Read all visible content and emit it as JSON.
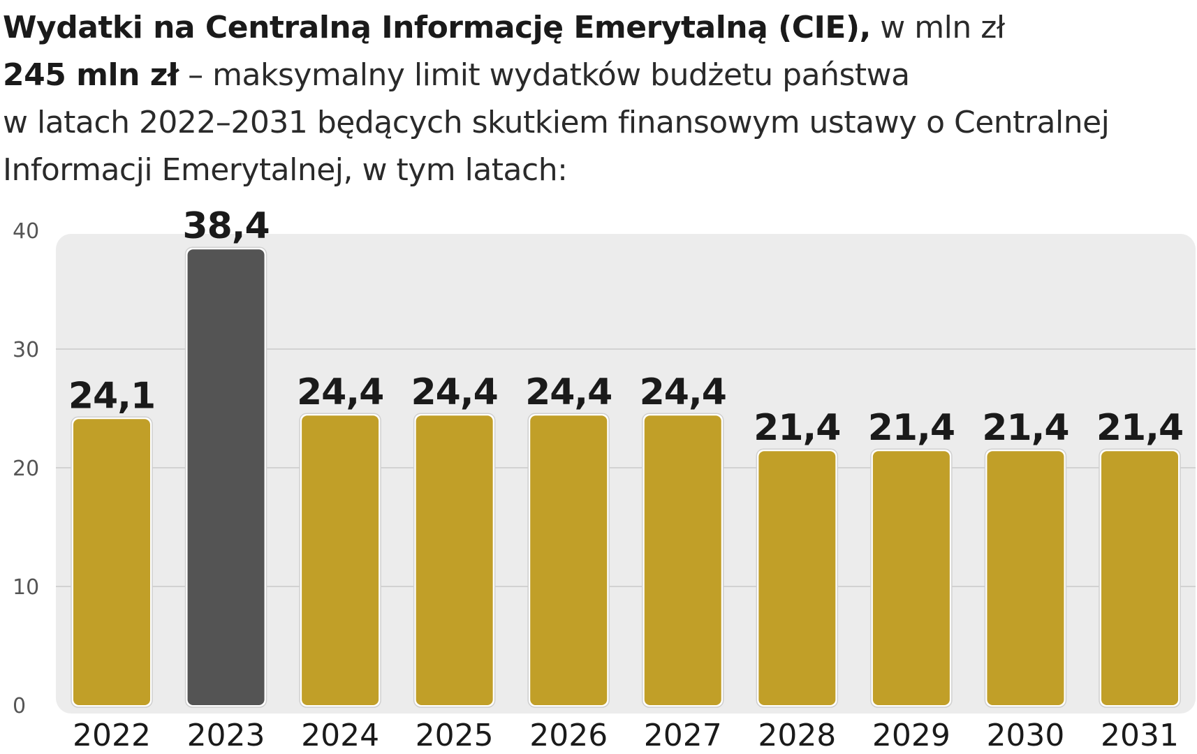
{
  "header": {
    "title_bold": "Wydatki na Centralną Informację Emerytalną (CIE),",
    "title_unit": " w mln zł",
    "limit_amount": "245 mln zł",
    "limit_text": " – maksymalny limit wydatków budżetu państwa",
    "line3": "w latach 2022–2031 będących skutkiem finansowym ustawy o Centralnej",
    "line4": "Informacji Emerytalnej, w tym latach:"
  },
  "chart_data": {
    "type": "bar",
    "categories": [
      "2022",
      "2023",
      "2024",
      "2025",
      "2026",
      "2027",
      "2028",
      "2029",
      "2030",
      "2031"
    ],
    "values": [
      24.1,
      38.4,
      24.4,
      24.4,
      24.4,
      24.4,
      21.4,
      21.4,
      21.4,
      21.4
    ],
    "value_labels": [
      "24,1",
      "38,4",
      "24,4",
      "24,4",
      "24,4",
      "24,4",
      "21,4",
      "21,4",
      "21,4",
      "21,4"
    ],
    "highlight_index": 1,
    "ylim": [
      0,
      40
    ],
    "yticks": [
      0,
      10,
      20,
      30,
      40
    ],
    "ytick_labels": [
      "0",
      "10",
      "20",
      "30",
      "40"
    ],
    "grid": true,
    "colors": {
      "bar": "#c19f28",
      "highlight": "#545454",
      "plot_background": "#ececec",
      "grid": "#d2d2d2"
    }
  }
}
